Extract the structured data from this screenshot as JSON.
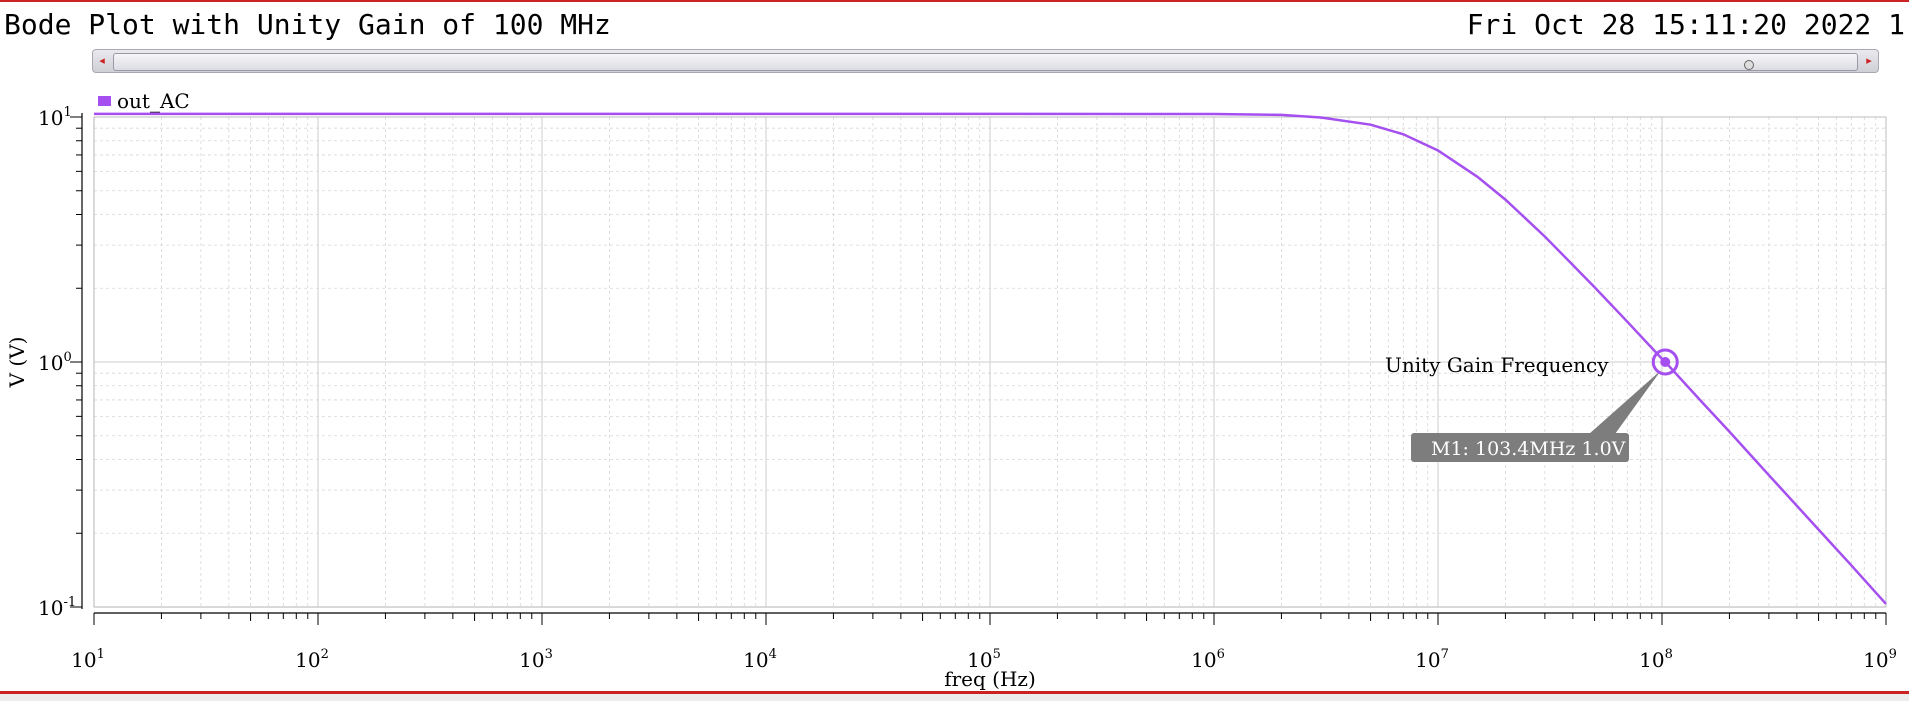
{
  "header": {
    "title": "Bode Plot with Unity Gain of 100 MHz",
    "date": "Fri Oct 28 15:11:20 2022 1"
  },
  "scrollbar": {
    "left_arrow": "◂",
    "right_arrow": "▸"
  },
  "colors": {
    "trace": "#a54ff0",
    "frame": "#cc2222",
    "grid": "#d6d6d6",
    "marker_box": "#7d7d7d"
  },
  "chart_data": {
    "type": "line",
    "xscale": "log",
    "yscale": "log",
    "xlim": [
      10,
      1000000000
    ],
    "ylim": [
      0.1,
      10
    ],
    "xlabel": "freq (Hz)",
    "ylabel": "V (V)",
    "x_ticks": [
      {
        "base": "10",
        "exp": "1"
      },
      {
        "base": "10",
        "exp": "2"
      },
      {
        "base": "10",
        "exp": "3"
      },
      {
        "base": "10",
        "exp": "4"
      },
      {
        "base": "10",
        "exp": "5"
      },
      {
        "base": "10",
        "exp": "6"
      },
      {
        "base": "10",
        "exp": "7"
      },
      {
        "base": "10",
        "exp": "8"
      },
      {
        "base": "10",
        "exp": "9"
      }
    ],
    "y_ticks": [
      {
        "base": "10",
        "exp": "1",
        "value": 10
      },
      {
        "base": "10",
        "exp": "0",
        "value": 1
      },
      {
        "base": "10",
        "exp": "-1",
        "value": 0.1
      }
    ],
    "legend": {
      "position": "top-left",
      "entries": [
        "out_AC"
      ]
    },
    "series": [
      {
        "name": "out_AC",
        "x": [
          10,
          100,
          1000,
          10000,
          100000,
          1000000,
          2000000,
          3000000,
          5000000,
          7000000,
          10000000,
          15000000,
          20000000,
          30000000,
          50000000,
          70000000,
          100000000,
          103400000,
          150000000,
          200000000,
          300000000,
          500000000,
          700000000,
          1000000000
        ],
        "values": [
          10.3,
          10.3,
          10.3,
          10.3,
          10.3,
          10.29,
          10.2,
          9.95,
          9.3,
          8.5,
          7.3,
          5.7,
          4.6,
          3.25,
          2.02,
          1.46,
          1.03,
          1.0,
          0.69,
          0.52,
          0.345,
          0.207,
          0.148,
          0.103
        ]
      }
    ],
    "annotations": {
      "point_label": "Unity Gain Frequency",
      "marker_text": "M1: 103.4MHz 1.0V",
      "marker": {
        "x": 103400000,
        "y": 1.0
      }
    }
  }
}
